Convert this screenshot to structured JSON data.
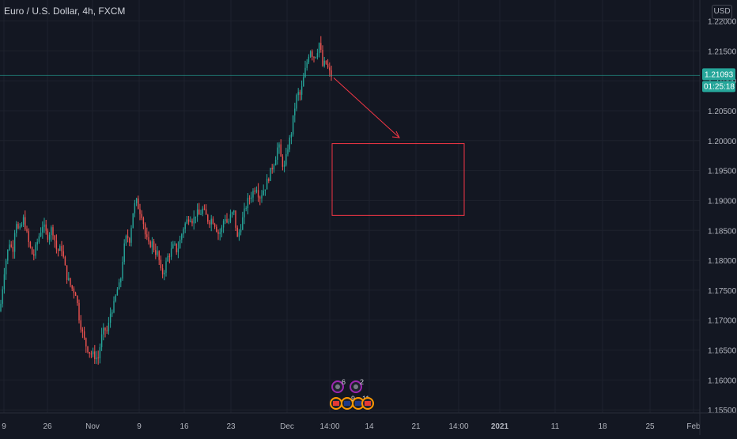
{
  "header": {
    "title": "Euro / U.S. Dollar, 4h, FXCM",
    "currency": "USD"
  },
  "price_badge": {
    "value": "1.21093",
    "countdown": "01:25:18"
  },
  "colors": {
    "background": "#131722",
    "up": "#26a69a",
    "down": "#ef5350",
    "grid": "#1e222d",
    "axis_text": "#b2b5be",
    "drawing": "#f23645",
    "badge": "#26a69a"
  },
  "events": [
    {
      "icon": "gear-icon",
      "count": "6"
    },
    {
      "icon": "gear-icon",
      "count": "2"
    },
    {
      "icon": "flag-us-icon",
      "count": ""
    },
    {
      "icon": "flag-eu-icon",
      "count": "9"
    },
    {
      "icon": "flag-eu-icon",
      "count": "11"
    },
    {
      "icon": "flag-us-icon",
      "count": ""
    }
  ],
  "chart_data": {
    "type": "candlestick",
    "x_ticks": [
      "9",
      "26",
      "Nov",
      "9",
      "16",
      "23",
      "Dec",
      "14:00",
      "14",
      "21",
      "14:00",
      "2021",
      "11",
      "18",
      "25",
      "Feb"
    ],
    "y_ticks": [
      "1.22000",
      "1.21500",
      "1.21000",
      "1.20500",
      "1.20000",
      "1.19500",
      "1.19000",
      "1.18500",
      "1.18000",
      "1.17500",
      "1.17000",
      "1.16500",
      "1.16000",
      "1.15500"
    ],
    "ylim": [
      1.1545,
      1.2235
    ],
    "last_price": 1.21093,
    "path": [
      [
        0,
        1.1715
      ],
      [
        6,
        1.179
      ],
      [
        12,
        1.183
      ],
      [
        16,
        1.1815
      ],
      [
        20,
        1.187
      ],
      [
        24,
        1.1845
      ],
      [
        30,
        1.187
      ],
      [
        36,
        1.183
      ],
      [
        42,
        1.1805
      ],
      [
        48,
        1.1835
      ],
      [
        54,
        1.186
      ],
      [
        60,
        1.184
      ],
      [
        66,
        1.1855
      ],
      [
        72,
        1.1815
      ],
      [
        78,
        1.182
      ],
      [
        84,
        1.1775
      ],
      [
        90,
        1.1755
      ],
      [
        96,
        1.1745
      ],
      [
        100,
        1.1705
      ],
      [
        104,
        1.168
      ],
      [
        108,
        1.166
      ],
      [
        114,
        1.1645
      ],
      [
        120,
        1.164
      ],
      [
        124,
        1.1635
      ],
      [
        128,
        1.167
      ],
      [
        132,
        1.1685
      ],
      [
        136,
        1.168
      ],
      [
        140,
        1.1715
      ],
      [
        144,
        1.1725
      ],
      [
        148,
        1.175
      ],
      [
        152,
        1.176
      ],
      [
        156,
        1.1815
      ],
      [
        160,
        1.184
      ],
      [
        164,
        1.1835
      ],
      [
        168,
        1.188
      ],
      [
        172,
        1.19
      ],
      [
        176,
        1.1885
      ],
      [
        180,
        1.1875
      ],
      [
        184,
        1.184
      ],
      [
        188,
        1.1825
      ],
      [
        192,
        1.183
      ],
      [
        196,
        1.1815
      ],
      [
        200,
        1.181
      ],
      [
        204,
        1.1775
      ],
      [
        208,
        1.1785
      ],
      [
        212,
        1.1805
      ],
      [
        216,
        1.1815
      ],
      [
        220,
        1.1825
      ],
      [
        224,
        1.1815
      ],
      [
        228,
        1.1835
      ],
      [
        232,
        1.1855
      ],
      [
        236,
        1.1865
      ],
      [
        240,
        1.1875
      ],
      [
        244,
        1.1865
      ],
      [
        248,
        1.188
      ],
      [
        252,
        1.1875
      ],
      [
        256,
        1.1885
      ],
      [
        260,
        1.1875
      ],
      [
        264,
        1.1865
      ],
      [
        268,
        1.187
      ],
      [
        272,
        1.186
      ],
      [
        276,
        1.1845
      ],
      [
        280,
        1.185
      ],
      [
        284,
        1.1875
      ],
      [
        288,
        1.186
      ],
      [
        292,
        1.1875
      ],
      [
        296,
        1.188
      ],
      [
        300,
        1.1835
      ],
      [
        304,
        1.1855
      ],
      [
        308,
        1.1875
      ],
      [
        312,
        1.1895
      ],
      [
        316,
        1.1905
      ],
      [
        320,
        1.1915
      ],
      [
        324,
        1.1925
      ],
      [
        328,
        1.1905
      ],
      [
        332,
        1.1915
      ],
      [
        336,
        1.1925
      ],
      [
        340,
        1.194
      ],
      [
        344,
        1.1955
      ],
      [
        348,
        1.197
      ],
      [
        352,
        1.1995
      ],
      [
        356,
        1.1965
      ],
      [
        360,
        1.1955
      ],
      [
        364,
        1.199
      ],
      [
        368,
        1.201
      ],
      [
        372,
        1.205
      ],
      [
        376,
        1.208
      ],
      [
        380,
        1.2075
      ],
      [
        384,
        1.2105
      ],
      [
        388,
        1.213
      ],
      [
        392,
        1.2155
      ],
      [
        396,
        1.214
      ],
      [
        400,
        1.2145
      ],
      [
        404,
        1.2165
      ],
      [
        408,
        1.2125
      ],
      [
        412,
        1.213
      ],
      [
        416,
        1.2115
      ],
      [
        420,
        1.2107
      ]
    ],
    "highlight_line": 1.2109,
    "arrow": {
      "from": [
        422,
        1.2105
      ],
      "to": [
        505,
        1.2005
      ]
    },
    "box": {
      "x0": 420,
      "x1": 587,
      "y0": 1.1875,
      "y1": 1.1995
    }
  }
}
